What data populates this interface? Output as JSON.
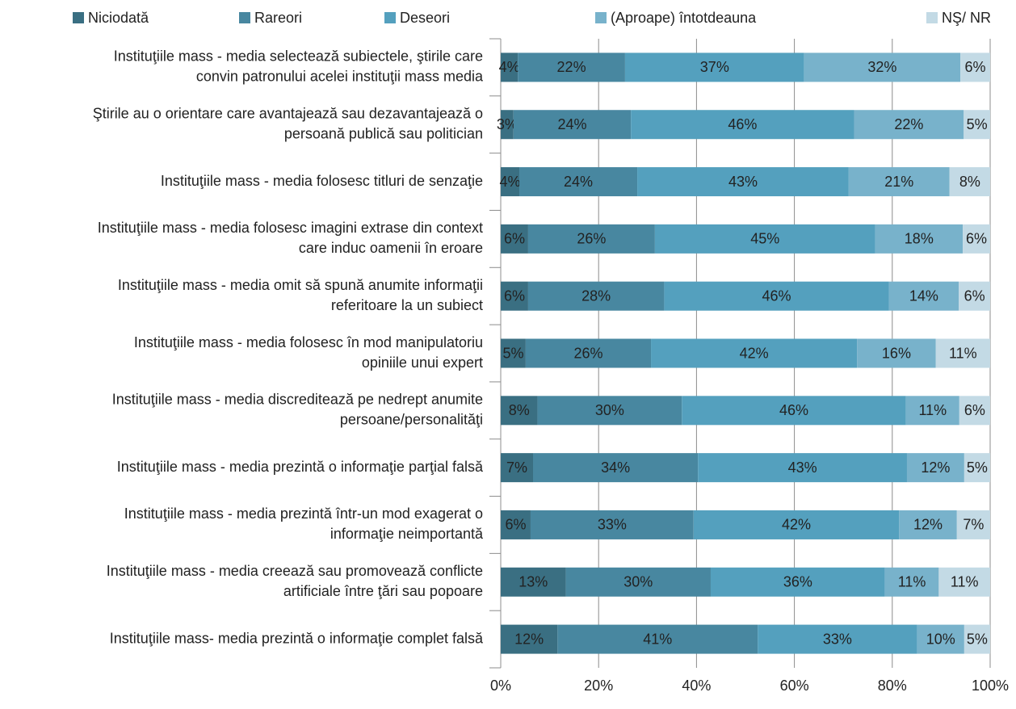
{
  "chart_data": {
    "type": "stacked-bar-horizontal",
    "categories": [
      [
        "Instituţiile mass - media selectează subiectele, ştirile care",
        "convin patronului acelei instituţii mass media"
      ],
      [
        "Ştirile au o orientare care avantajează sau dezavantajează o",
        "persoană publică sau politician"
      ],
      [
        "Instituţiile mass - media folosesc titluri de senzaţie"
      ],
      [
        "Instituţiile mass - media folosesc imagini extrase din context",
        "care induc oamenii în eroare"
      ],
      [
        "Instituţiile mass - media omit să spună anumite informaţii",
        "referitoare la un subiect"
      ],
      [
        "Instituţiile mass - media folosesc în mod manipulatoriu",
        "opiniile unui expert"
      ],
      [
        "Instituţiile mass - media discreditează pe nedrept anumite",
        "persoane/personalităţi"
      ],
      [
        "Instituţiile mass - media prezintă o informaţie parţial falsă"
      ],
      [
        "Instituţiile mass - media prezintă într-un mod exagerat o",
        "informaţie neimportantă"
      ],
      [
        "Instituţiile mass - media creează sau promovează conflicte",
        "artificiale între ţări sau popoare"
      ],
      [
        "Instituţiile mass- media prezintă o informaţie complet falsă"
      ]
    ],
    "series": [
      {
        "name": "Niciodată",
        "color": "#3a6f82",
        "values": [
          3.5,
          2.6,
          3.8,
          5.6,
          5.6,
          5.1,
          7.5,
          6.6,
          6.1,
          13.3,
          11.6
        ],
        "value_labels": [
          "4%",
          "3%",
          "4%",
          "6%",
          "6%",
          "5%",
          "8%",
          "7%",
          "6%",
          "13%",
          "12%"
        ]
      },
      {
        "name": "Rareori",
        "color": "#4887a0",
        "values": [
          21.9,
          24.0,
          24.1,
          25.9,
          27.8,
          25.6,
          29.5,
          33.7,
          33.3,
          29.6,
          40.9
        ],
        "value_labels": [
          "22%",
          "24%",
          "24%",
          "26%",
          "28%",
          "26%",
          "30%",
          "34%",
          "33%",
          "30%",
          "41%"
        ]
      },
      {
        "name": "Deseori",
        "color": "#54a0be",
        "values": [
          36.6,
          45.6,
          43.2,
          45.0,
          45.9,
          42.1,
          45.8,
          42.7,
          42.0,
          35.6,
          32.6
        ],
        "value_labels": [
          "37%",
          "46%",
          "43%",
          "45%",
          "46%",
          "42%",
          "46%",
          "43%",
          "42%",
          "36%",
          "33%"
        ]
      },
      {
        "name": "(Aproape) întotdeauna",
        "color": "#78b2cb",
        "values": [
          31.9,
          22.4,
          20.6,
          17.9,
          14.3,
          16.1,
          10.9,
          11.7,
          11.8,
          11.0,
          9.6
        ],
        "value_labels": [
          "32%",
          "22%",
          "21%",
          "18%",
          "14%",
          "16%",
          "11%",
          "12%",
          "12%",
          "11%",
          "10%"
        ]
      },
      {
        "name": "NŞ/ NR",
        "color": "#c3dae5",
        "values": [
          6.1,
          5.4,
          8.3,
          5.6,
          6.4,
          11.1,
          6.3,
          5.3,
          6.8,
          10.5,
          5.3
        ],
        "value_labels": [
          "6%",
          "5%",
          "8%",
          "6%",
          "6%",
          "11%",
          "6%",
          "5%",
          "7%",
          "11%",
          "5%"
        ]
      }
    ],
    "xlim": [
      0,
      100
    ],
    "xticks": [
      {
        "value": 0,
        "label": "0%"
      },
      {
        "value": 20,
        "label": "20%"
      },
      {
        "value": 40,
        "label": "40%"
      },
      {
        "value": 60,
        "label": "60%"
      },
      {
        "value": 80,
        "label": "80%"
      },
      {
        "value": 100,
        "label": "100%"
      }
    ],
    "grid": true,
    "legend": "top"
  }
}
